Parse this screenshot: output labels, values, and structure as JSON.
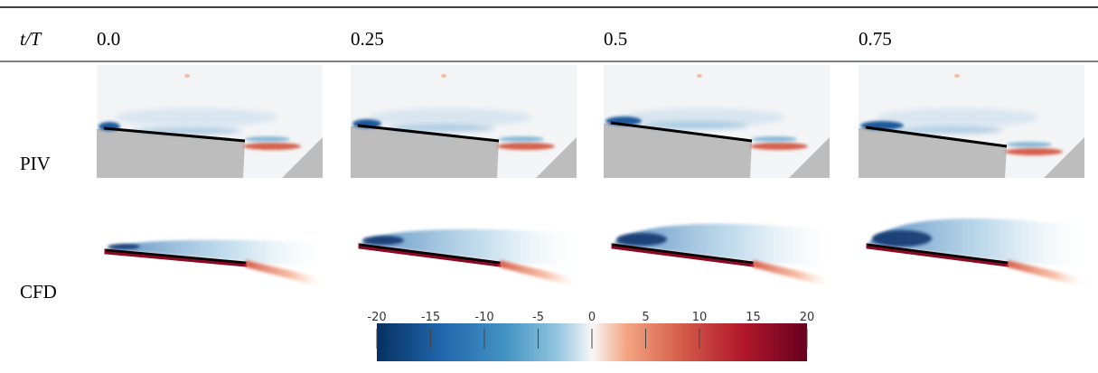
{
  "header": {
    "label": "t/T",
    "columns": [
      "0.0",
      "0.25",
      "0.5",
      "0.75"
    ]
  },
  "rows": [
    "PIV",
    "CFD"
  ],
  "colorbar": {
    "lim": [
      -20,
      20
    ],
    "ticks": [
      -20,
      -15,
      -10,
      -5,
      0,
      5,
      10,
      15,
      20
    ]
  }
}
